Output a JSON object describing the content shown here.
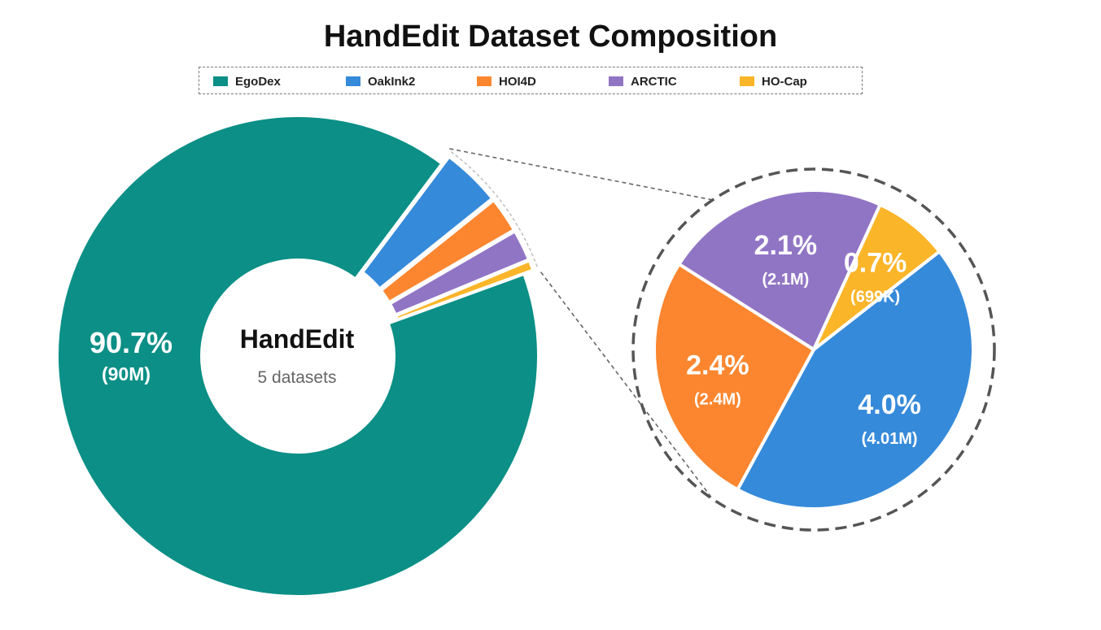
{
  "chart_data": {
    "type": "pie",
    "title": "HandEdit Dataset Composition",
    "center_label": {
      "title": "HandEdit",
      "subtitle": "5 datasets"
    },
    "legend_position": "top",
    "series": [
      {
        "name": "EgoDex",
        "value": 90.7,
        "percent_label": "90.7%",
        "count_label": "(90M)",
        "color": "#0b8f86"
      },
      {
        "name": "OakInk2",
        "value": 4.0,
        "percent_label": "4.0%",
        "count_label": "(4.01M)",
        "color": "#368ada"
      },
      {
        "name": "HOI4D",
        "value": 2.4,
        "percent_label": "2.4%",
        "count_label": "(2.4M)",
        "color": "#fb862f"
      },
      {
        "name": "ARCTIC",
        "value": 2.1,
        "percent_label": "2.1%",
        "count_label": "(2.1M)",
        "color": "#9175c5"
      },
      {
        "name": "HO-Cap",
        "value": 0.7,
        "percent_label": "0.7%",
        "count_label": "(699K)",
        "color": "#fbb529"
      }
    ],
    "detail_pie": {
      "series_included": [
        "OakInk2",
        "HOI4D",
        "ARCTIC",
        "HO-Cap"
      ]
    }
  }
}
